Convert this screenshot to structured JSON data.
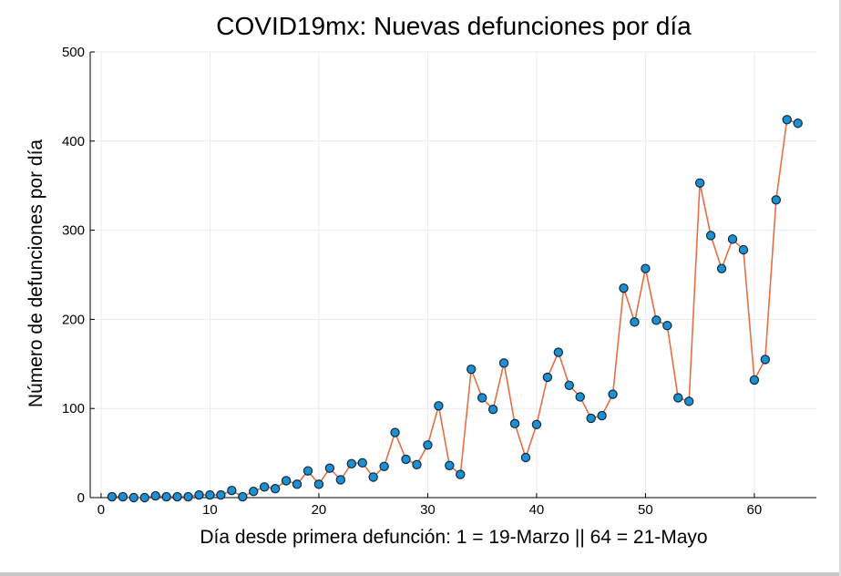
{
  "chart_data": {
    "type": "scatter",
    "title": "COVID19mx: Nuevas defunciones por día",
    "xlabel": "Día desde primera defunción: 1 = 19-Marzo || 64 = 21-Mayo",
    "ylabel": "Número de defunciones por día",
    "xlim": [
      -1,
      65.7
    ],
    "ylim": [
      0,
      500
    ],
    "xticks": [
      0,
      10,
      20,
      30,
      40,
      50,
      60
    ],
    "yticks": [
      0,
      100,
      200,
      300,
      400,
      500
    ],
    "grid": true,
    "line_color": "#e26f46",
    "marker_color": "#1f8fd0",
    "marker_edge": "#0a2a40",
    "series": [
      {
        "x": [
          1,
          2,
          3,
          4,
          5,
          6,
          7,
          8,
          9,
          10,
          11,
          12,
          13,
          14,
          15,
          16,
          17,
          18,
          19,
          20,
          21,
          22,
          23,
          24,
          25,
          26,
          27,
          28,
          29,
          30,
          31,
          32,
          33,
          34,
          35,
          36,
          37,
          38,
          39,
          40,
          41,
          42,
          43,
          44,
          45,
          46,
          47,
          48,
          49,
          50,
          51,
          52,
          53,
          54,
          55,
          56,
          57,
          58,
          59,
          60,
          61,
          62,
          63,
          64
        ],
        "values": [
          1,
          1,
          0,
          0,
          2,
          1,
          1,
          1,
          3,
          3,
          3,
          8,
          1,
          7,
          12,
          10,
          19,
          15,
          30,
          15,
          33,
          20,
          38,
          39,
          23,
          35,
          73,
          43,
          37,
          59,
          103,
          36,
          26,
          144,
          112,
          99,
          151,
          83,
          45,
          82,
          135,
          163,
          126,
          113,
          89,
          92,
          116,
          235,
          197,
          257,
          199,
          193,
          112,
          108,
          353,
          294,
          257,
          290,
          278,
          132,
          155,
          334,
          424,
          420
        ]
      }
    ]
  }
}
